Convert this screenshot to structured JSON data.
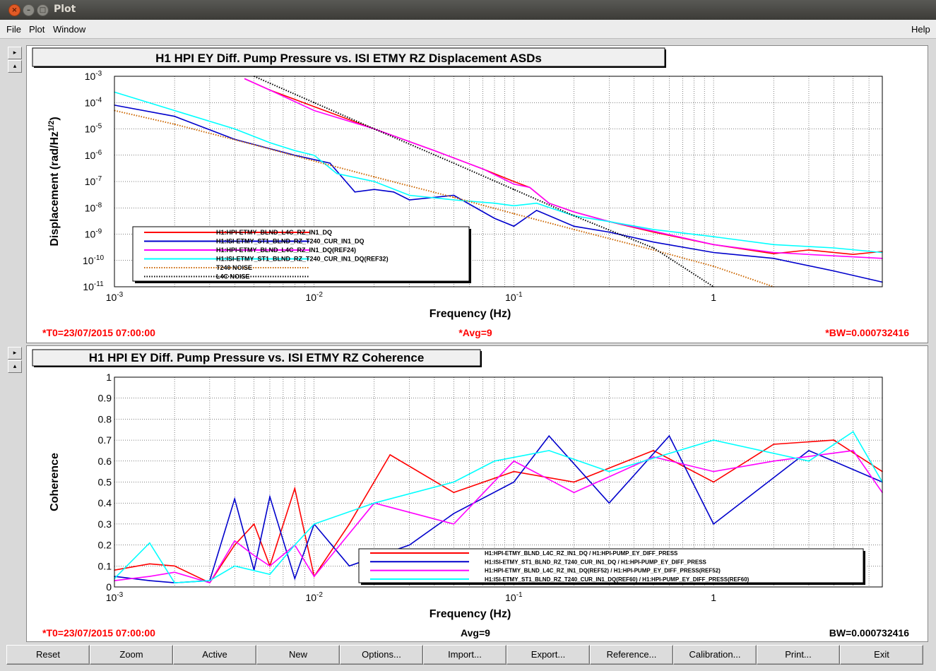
{
  "window": {
    "title": "Plot"
  },
  "menu": {
    "file": "File",
    "plot": "Plot",
    "window": "Window",
    "help": "Help"
  },
  "buttons": [
    "Reset",
    "Zoom",
    "Active",
    "New",
    "Options...",
    "Import...",
    "Export...",
    "Reference...",
    "Calibration...",
    "Print...",
    "Exit"
  ],
  "colors": {
    "red": "#ff0000",
    "blue": "#0000cc",
    "magenta": "#ff00ff",
    "cyan": "#00ffff",
    "orange": "#cc6600",
    "black": "#000000"
  },
  "chart_data": [
    {
      "type": "line",
      "title": "H1 HPI EY Diff. Pump Pressure vs. ISI ETMY RZ Displacement ASDs",
      "xlabel": "Frequency (Hz)",
      "ylabel_main": "Displacement (rad/Hz",
      "ylabel_sup": "1/2",
      "ylabel_end": ")",
      "xscale": "log",
      "yscale": "log",
      "xlim": [
        0.001,
        7
      ],
      "ylim": [
        1e-11,
        0.001
      ],
      "x_ticks": [
        {
          "base": "10",
          "exp": "-3",
          "v": 0.001
        },
        {
          "base": "10",
          "exp": "-2",
          "v": 0.01
        },
        {
          "base": "10",
          "exp": "-1",
          "v": 0.1
        },
        {
          "base": "1",
          "exp": "",
          "v": 1
        }
      ],
      "y_ticks": [
        {
          "base": "10",
          "exp": "-3",
          "v": 0.001
        },
        {
          "base": "10",
          "exp": "-4",
          "v": 0.0001
        },
        {
          "base": "10",
          "exp": "-5",
          "v": 1e-05
        },
        {
          "base": "10",
          "exp": "-6",
          "v": 1e-06
        },
        {
          "base": "10",
          "exp": "-7",
          "v": 1e-07
        },
        {
          "base": "10",
          "exp": "-8",
          "v": 1e-08
        },
        {
          "base": "10",
          "exp": "-9",
          "v": 1e-09
        },
        {
          "base": "10",
          "exp": "-10",
          "v": 1e-10
        },
        {
          "base": "10",
          "exp": "-11",
          "v": 1e-11
        }
      ],
      "grid": true,
      "legend_position": "bottom-left",
      "footer": {
        "left": "*T0=23/07/2015 07:00:00",
        "center": "*Avg=9",
        "right": "*BW=0.000732416"
      },
      "series": [
        {
          "name": "H1:HPI-ETMY_BLND_L4C_RZ_IN1_DQ",
          "color": "#ff0000",
          "style": "solid",
          "x": [
            0.0045,
            0.006,
            0.01,
            0.02,
            0.04,
            0.07,
            0.1,
            0.12,
            0.15,
            0.2,
            0.3,
            0.5,
            1,
            2,
            3,
            5,
            7
          ],
          "y": [
            0.0008,
            0.0003,
            7e-05,
            1e-05,
            1.5e-06,
            3e-07,
            1e-07,
            6e-08,
            1.5e-08,
            7e-09,
            3e-09,
            1.2e-09,
            4e-10,
            1.8e-10,
            2.5e-10,
            1.7e-10,
            2.2e-10
          ]
        },
        {
          "name": "H1:ISI-ETMY_ST1_BLND_RZ_T240_CUR_IN1_DQ",
          "color": "#0000cc",
          "style": "solid",
          "x": [
            0.001,
            0.002,
            0.004,
            0.008,
            0.012,
            0.016,
            0.02,
            0.025,
            0.03,
            0.05,
            0.08,
            0.1,
            0.13,
            0.2,
            0.3,
            0.5,
            1,
            2,
            4,
            7
          ],
          "y": [
            8e-05,
            3e-05,
            4e-06,
            1e-06,
            5e-07,
            4e-08,
            5e-08,
            4e-08,
            2e-08,
            3e-08,
            4e-09,
            2e-09,
            8e-09,
            2e-09,
            1.2e-09,
            5e-10,
            2e-10,
            1.2e-10,
            4e-11,
            1.5e-11
          ]
        },
        {
          "name": "H1:HPI-ETMY_BLND_L4C_RZ_IN1_DQ(REF24)",
          "color": "#ff00ff",
          "style": "solid",
          "x": [
            0.0045,
            0.006,
            0.01,
            0.02,
            0.04,
            0.07,
            0.1,
            0.12,
            0.15,
            0.2,
            0.3,
            0.5,
            1,
            2,
            4,
            7
          ],
          "y": [
            0.0008,
            0.0003,
            5e-05,
            1e-05,
            1.5e-06,
            3e-07,
            8e-08,
            6e-08,
            1.5e-08,
            7e-09,
            3e-09,
            1.3e-09,
            4e-10,
            2e-10,
            1.5e-10,
            1.2e-10
          ]
        },
        {
          "name": "H1:ISI-ETMY_ST1_BLND_RZ_T240_CUR_IN1_DQ(REF32)",
          "color": "#00ffff",
          "style": "solid",
          "x": [
            0.001,
            0.002,
            0.004,
            0.006,
            0.008,
            0.01,
            0.013,
            0.02,
            0.03,
            0.05,
            0.08,
            0.1,
            0.13,
            0.2,
            0.3,
            0.5,
            1,
            2,
            4,
            7
          ],
          "y": [
            0.00025,
            5e-05,
            1e-05,
            3e-06,
            1.5e-06,
            1e-06,
            2e-07,
            1e-07,
            3e-08,
            2e-08,
            1.5e-08,
            1.2e-08,
            1.5e-08,
            5e-09,
            3e-09,
            1.5e-09,
            8e-10,
            4e-10,
            3e-10,
            2e-10
          ]
        },
        {
          "name": "T240 NOISE",
          "color": "#cc6600",
          "style": "dotted",
          "x": [
            0.001,
            0.002,
            0.005,
            0.01,
            0.02,
            0.05,
            0.1,
            0.2,
            0.5,
            1,
            2
          ],
          "y": [
            5e-05,
            1.5e-05,
            2.5e-06,
            6e-07,
            1.5e-07,
            2.5e-08,
            6e-09,
            1.5e-09,
            2.5e-10,
            6e-11,
            1e-11
          ]
        },
        {
          "name": "L4C NOISE",
          "color": "#000000",
          "style": "dotted",
          "x": [
            0.005,
            0.01,
            0.02,
            0.05,
            0.1,
            0.2,
            0.5,
            1
          ],
          "y": [
            0.001,
            0.0001,
            1e-05,
            5e-07,
            5e-08,
            5e-09,
            3e-10,
            1e-11
          ]
        }
      ]
    },
    {
      "type": "line",
      "title": "H1 HPI EY Diff. Pump Pressure vs. ISI ETMY RZ Coherence",
      "xlabel": "Frequency (Hz)",
      "ylabel": "Coherence",
      "xscale": "log",
      "xlim": [
        0.001,
        7
      ],
      "ylim": [
        0,
        1
      ],
      "x_ticks": [
        {
          "base": "10",
          "exp": "-3",
          "v": 0.001
        },
        {
          "base": "10",
          "exp": "-2",
          "v": 0.01
        },
        {
          "base": "10",
          "exp": "-1",
          "v": 0.1
        },
        {
          "base": "1",
          "exp": "",
          "v": 1
        }
      ],
      "y_ticks": [
        "0",
        "0.1",
        "0.2",
        "0.3",
        "0.4",
        "0.5",
        "0.6",
        "0.7",
        "0.8",
        "0.9",
        "1"
      ],
      "grid": true,
      "legend_position": "bottom-right",
      "footer": {
        "left": "*T0=23/07/2015 07:00:00",
        "center": "Avg=9",
        "right": "BW=0.000732416"
      },
      "series": [
        {
          "name": "H1:HPI-ETMY_BLND_L4C_RZ_IN1_DQ / H1:HPI-PUMP_EY_DIFF_PRESS",
          "color": "#ff0000",
          "style": "solid",
          "x": [
            0.001,
            0.0015,
            0.002,
            0.003,
            0.004,
            0.005,
            0.006,
            0.008,
            0.01,
            0.015,
            0.024,
            0.05,
            0.1,
            0.2,
            0.5,
            1,
            2,
            4,
            7
          ],
          "y": [
            0.08,
            0.11,
            0.1,
            0.02,
            0.2,
            0.3,
            0.1,
            0.47,
            0.05,
            0.3,
            0.63,
            0.45,
            0.55,
            0.5,
            0.65,
            0.5,
            0.68,
            0.7,
            0.55
          ]
        },
        {
          "name": "H1:ISI-ETMY_ST1_BLND_RZ_T240_CUR_IN1_DQ / H1:HPI-PUMP_EY_DIFF_PRESS",
          "color": "#0000cc",
          "style": "solid",
          "x": [
            0.001,
            0.0015,
            0.002,
            0.003,
            0.004,
            0.005,
            0.006,
            0.008,
            0.01,
            0.015,
            0.03,
            0.05,
            0.1,
            0.15,
            0.3,
            0.6,
            1,
            3,
            7
          ],
          "y": [
            0.05,
            0.03,
            0.02,
            0.03,
            0.42,
            0.08,
            0.43,
            0.04,
            0.3,
            0.1,
            0.2,
            0.35,
            0.5,
            0.72,
            0.4,
            0.72,
            0.3,
            0.65,
            0.5
          ]
        },
        {
          "name": "H1:HPI-ETMY_BLND_L4C_RZ_IN1_DQ(REF52) / H1:HPI-PUMP_EY_DIFF_PRESS(REF52)",
          "color": "#ff00ff",
          "style": "solid",
          "x": [
            0.001,
            0.0015,
            0.002,
            0.003,
            0.004,
            0.005,
            0.006,
            0.008,
            0.01,
            0.02,
            0.05,
            0.1,
            0.2,
            0.5,
            1,
            2,
            5,
            7
          ],
          "y": [
            0.03,
            0.05,
            0.07,
            0.02,
            0.22,
            0.15,
            0.1,
            0.2,
            0.05,
            0.4,
            0.3,
            0.6,
            0.45,
            0.62,
            0.55,
            0.6,
            0.65,
            0.45
          ]
        },
        {
          "name": "H1:ISI-ETMY_ST1_BLND_RZ_T240_CUR_IN1_DQ(REF60) / H1:HPI-PUMP_EY_DIFF_PRESS(REF60)",
          "color": "#00ffff",
          "style": "solid",
          "x": [
            0.001,
            0.0015,
            0.002,
            0.003,
            0.004,
            0.006,
            0.008,
            0.01,
            0.02,
            0.05,
            0.08,
            0.15,
            0.3,
            1,
            3,
            5,
            7
          ],
          "y": [
            0.04,
            0.21,
            0.02,
            0.03,
            0.1,
            0.06,
            0.2,
            0.3,
            0.4,
            0.5,
            0.6,
            0.65,
            0.55,
            0.7,
            0.6,
            0.74,
            0.5
          ]
        }
      ]
    }
  ]
}
